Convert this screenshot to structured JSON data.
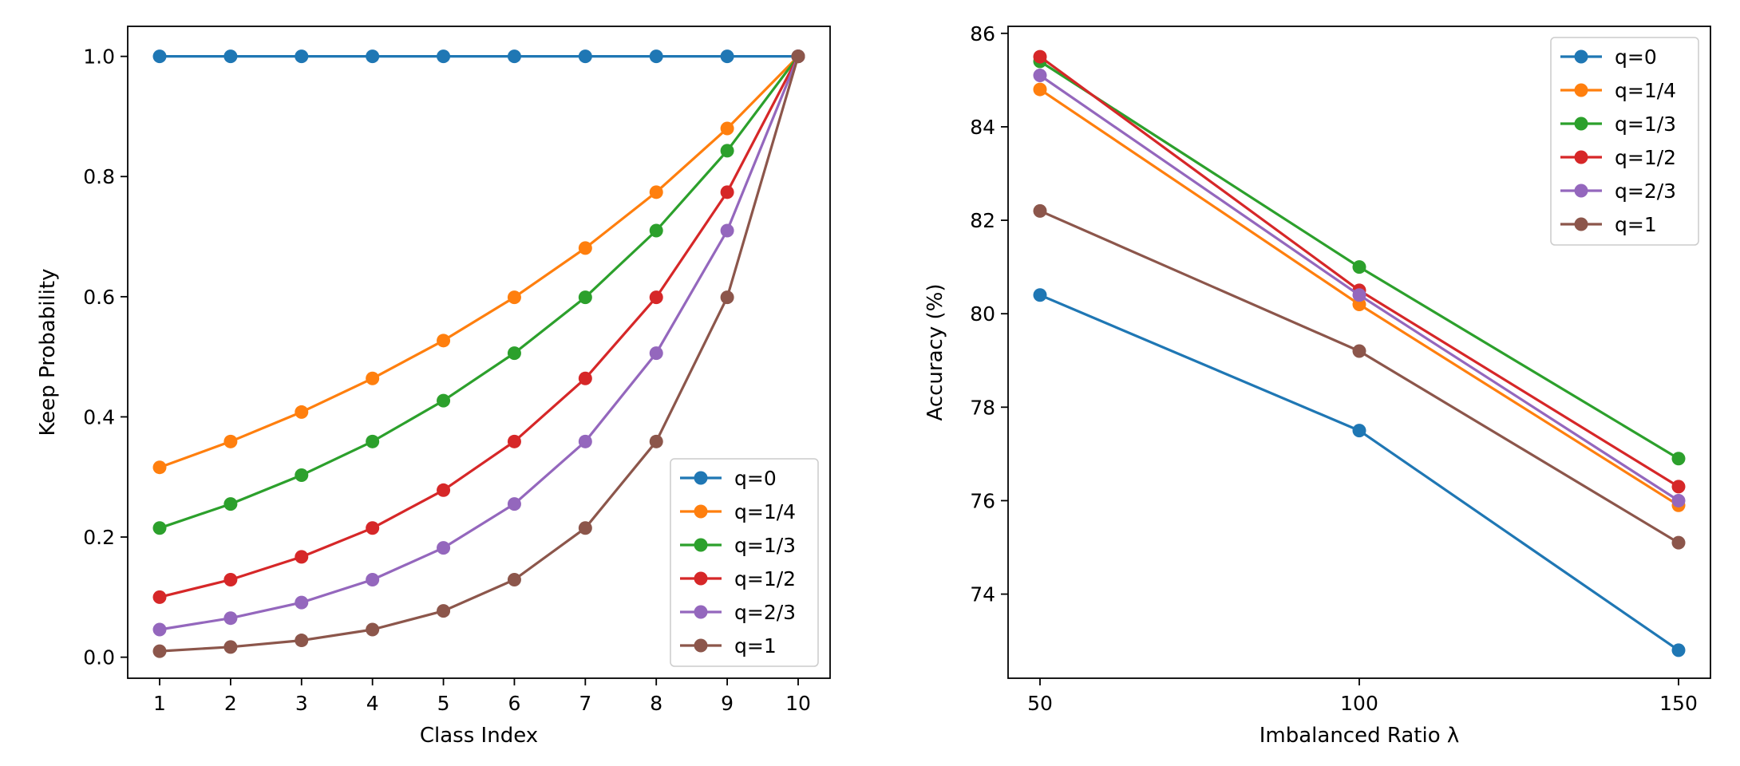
{
  "chart_data": [
    {
      "type": "line",
      "title": "",
      "xlabel": "Class Index",
      "ylabel": "Keep Probability",
      "x": [
        1,
        2,
        3,
        4,
        5,
        6,
        7,
        8,
        9,
        10
      ],
      "xticks": [
        "1",
        "2",
        "3",
        "4",
        "5",
        "6",
        "7",
        "8",
        "9",
        "10"
      ],
      "yticks": [
        "0.0",
        "0.2",
        "0.4",
        "0.6",
        "0.8",
        "1.0"
      ],
      "xlim": [
        0.55,
        10.45
      ],
      "ylim": [
        -0.035,
        1.05
      ],
      "legend_position": "lower-right",
      "grid": false,
      "series": [
        {
          "name": "q=0",
          "color": "#1f77b4",
          "values": [
            1.0,
            1.0,
            1.0,
            1.0,
            1.0,
            1.0,
            1.0,
            1.0,
            1.0,
            1.0
          ]
        },
        {
          "name": "q=1/4",
          "color": "#ff7f0e",
          "values": [
            0.316,
            0.359,
            0.408,
            0.464,
            0.527,
            0.599,
            0.681,
            0.774,
            0.88,
            1.0
          ]
        },
        {
          "name": "q=1/3",
          "color": "#2ca02c",
          "values": [
            0.215,
            0.255,
            0.303,
            0.359,
            0.427,
            0.506,
            0.599,
            0.71,
            0.843,
            1.0
          ]
        },
        {
          "name": "q=1/2",
          "color": "#d62728",
          "values": [
            0.1,
            0.129,
            0.167,
            0.215,
            0.278,
            0.359,
            0.464,
            0.599,
            0.774,
            1.0
          ]
        },
        {
          "name": "q=2/3",
          "color": "#9467bd",
          "values": [
            0.046,
            0.065,
            0.091,
            0.129,
            0.182,
            0.255,
            0.359,
            0.506,
            0.71,
            1.0
          ]
        },
        {
          "name": "q=1",
          "color": "#8c564b",
          "values": [
            0.01,
            0.017,
            0.028,
            0.046,
            0.077,
            0.129,
            0.215,
            0.359,
            0.599,
            1.0
          ]
        }
      ]
    },
    {
      "type": "line",
      "title": "",
      "xlabel": "Imbalanced Ratio λ",
      "ylabel": "Accuracy (%)",
      "x": [
        50,
        100,
        150
      ],
      "xticks": [
        "50",
        "100",
        "150"
      ],
      "yticks": [
        "74",
        "76",
        "78",
        "80",
        "82",
        "84",
        "86"
      ],
      "xlim": [
        45,
        155
      ],
      "ylim": [
        72.2,
        86.15
      ],
      "legend_position": "upper-right",
      "grid": false,
      "series": [
        {
          "name": "q=0",
          "color": "#1f77b4",
          "values": [
            80.4,
            77.5,
            72.8
          ]
        },
        {
          "name": "q=1/4",
          "color": "#ff7f0e",
          "values": [
            84.8,
            80.2,
            75.9
          ]
        },
        {
          "name": "q=1/3",
          "color": "#2ca02c",
          "values": [
            85.4,
            81.0,
            76.9
          ]
        },
        {
          "name": "q=1/2",
          "color": "#d62728",
          "values": [
            85.5,
            80.5,
            76.3
          ]
        },
        {
          "name": "q=2/3",
          "color": "#9467bd",
          "values": [
            85.1,
            80.4,
            76.0
          ]
        },
        {
          "name": "q=1",
          "color": "#8c564b",
          "values": [
            82.2,
            79.2,
            75.1
          ]
        }
      ]
    }
  ]
}
